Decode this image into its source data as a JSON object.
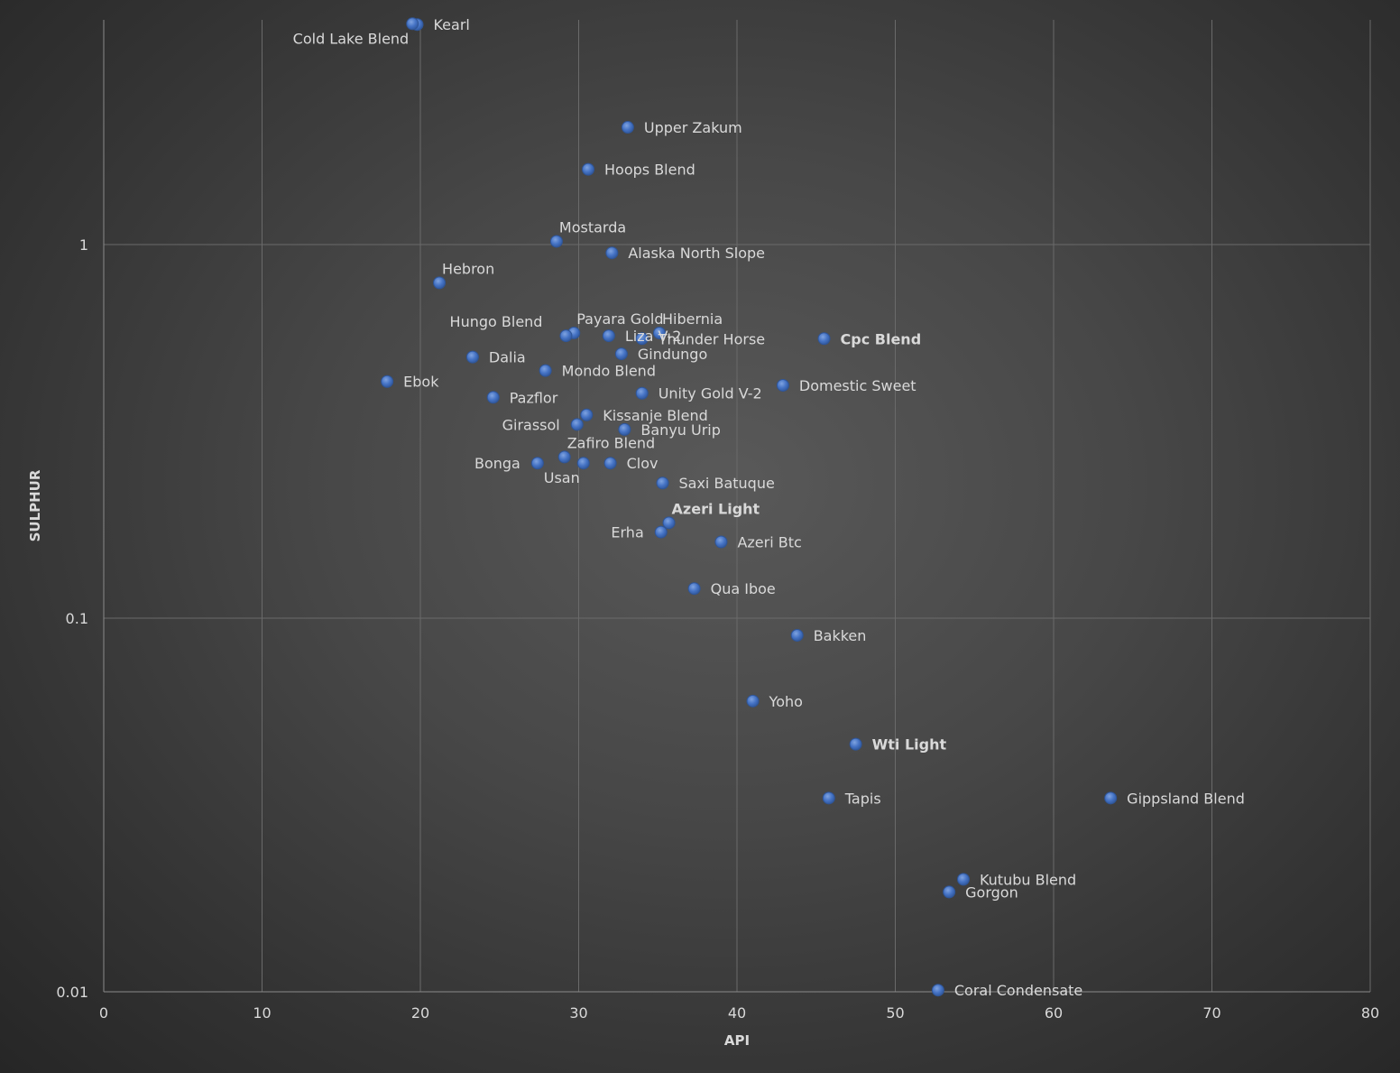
{
  "chart_data": {
    "type": "scatter",
    "xlabel": "API",
    "ylabel": "SULPHUR",
    "xlim": [
      0,
      80
    ],
    "ylim": [
      0.01,
      4.5
    ],
    "yscale": "log",
    "xticks": [
      "0",
      "10",
      "20",
      "30",
      "40",
      "50",
      "60",
      "70",
      "80"
    ],
    "yticks": [
      "0.01",
      "0.1",
      "1"
    ],
    "grid": true,
    "legend": "none",
    "marker_color": "#4472c4",
    "label_color": "#d9d9d9",
    "points": [
      {
        "name": "Kearl",
        "x": 19.8,
        "y": 3.88,
        "label_pos": "right"
      },
      {
        "name": "Cold Lake Blend",
        "x": 19.5,
        "y": 3.9,
        "label_pos": "below-left"
      },
      {
        "name": "Upper Zakum",
        "x": 33.1,
        "y": 2.06,
        "label_pos": "right"
      },
      {
        "name": "Hoops Blend",
        "x": 30.6,
        "y": 1.59,
        "label_pos": "right"
      },
      {
        "name": "Mostarda",
        "x": 28.6,
        "y": 1.02,
        "label_pos": "above-right"
      },
      {
        "name": "Alaska North Slope",
        "x": 32.1,
        "y": 0.95,
        "label_pos": "right"
      },
      {
        "name": "Hebron",
        "x": 21.2,
        "y": 0.79,
        "label_pos": "above-right"
      },
      {
        "name": "Payara Gold",
        "x": 29.7,
        "y": 0.58,
        "label_pos": "above-right"
      },
      {
        "name": "Hungo Blend",
        "x": 29.2,
        "y": 0.57,
        "label_pos": "above-left"
      },
      {
        "name": "Hibernia",
        "x": 35.1,
        "y": 0.58,
        "label_pos": "above-right"
      },
      {
        "name": "Liza V-2",
        "x": 31.9,
        "y": 0.57,
        "label_pos": "right"
      },
      {
        "name": "Thunder Horse",
        "x": 34.0,
        "y": 0.56,
        "label_pos": "right"
      },
      {
        "name": "Cpc Blend",
        "x": 45.5,
        "y": 0.56,
        "label_pos": "right",
        "bold": true
      },
      {
        "name": "Gindungo",
        "x": 32.7,
        "y": 0.51,
        "label_pos": "right"
      },
      {
        "name": "Dalia",
        "x": 23.3,
        "y": 0.5,
        "label_pos": "right"
      },
      {
        "name": "Mondo Blend",
        "x": 27.9,
        "y": 0.46,
        "label_pos": "right"
      },
      {
        "name": "Ebok",
        "x": 17.9,
        "y": 0.43,
        "label_pos": "right"
      },
      {
        "name": "Domestic Sweet",
        "x": 42.9,
        "y": 0.42,
        "label_pos": "right"
      },
      {
        "name": "Unity Gold V-2",
        "x": 34.0,
        "y": 0.4,
        "label_pos": "right"
      },
      {
        "name": "Pazflor",
        "x": 24.6,
        "y": 0.39,
        "label_pos": "right"
      },
      {
        "name": "Kissanje Blend",
        "x": 30.5,
        "y": 0.35,
        "label_pos": "right"
      },
      {
        "name": "Girassol",
        "x": 29.9,
        "y": 0.33,
        "label_pos": "left"
      },
      {
        "name": "Banyu Urip",
        "x": 32.9,
        "y": 0.32,
        "label_pos": "right"
      },
      {
        "name": "Zafiro Blend",
        "x": 29.1,
        "y": 0.27,
        "label_pos": "above-right"
      },
      {
        "name": "Bonga",
        "x": 27.4,
        "y": 0.26,
        "label_pos": "left"
      },
      {
        "name": "Usan",
        "x": 30.3,
        "y": 0.26,
        "label_pos": "below-left"
      },
      {
        "name": "Clov",
        "x": 32.0,
        "y": 0.26,
        "label_pos": "right"
      },
      {
        "name": "Saxi Batuque",
        "x": 35.3,
        "y": 0.23,
        "label_pos": "right"
      },
      {
        "name": "Azeri Light",
        "x": 35.7,
        "y": 0.18,
        "label_pos": "above-right",
        "bold": true
      },
      {
        "name": "Erha",
        "x": 35.2,
        "y": 0.17,
        "label_pos": "left"
      },
      {
        "name": "Azeri Btc",
        "x": 39.0,
        "y": 0.16,
        "label_pos": "right"
      },
      {
        "name": "Qua Iboe",
        "x": 37.3,
        "y": 0.12,
        "label_pos": "right"
      },
      {
        "name": "Bakken",
        "x": 43.8,
        "y": 0.09,
        "label_pos": "right"
      },
      {
        "name": "Yoho",
        "x": 41.0,
        "y": 0.06,
        "label_pos": "right"
      },
      {
        "name": "Wti Light",
        "x": 47.5,
        "y": 0.046,
        "label_pos": "right",
        "bold": true
      },
      {
        "name": "Tapis",
        "x": 45.8,
        "y": 0.033,
        "label_pos": "right"
      },
      {
        "name": "Gippsland Blend",
        "x": 63.6,
        "y": 0.033,
        "label_pos": "right"
      },
      {
        "name": "Kutubu Blend",
        "x": 54.3,
        "y": 0.02,
        "label_pos": "right"
      },
      {
        "name": "Gorgon",
        "x": 53.4,
        "y": 0.0185,
        "label_pos": "right"
      },
      {
        "name": "Coral Condensate",
        "x": 52.7,
        "y": 0.0101,
        "label_pos": "right"
      }
    ]
  }
}
